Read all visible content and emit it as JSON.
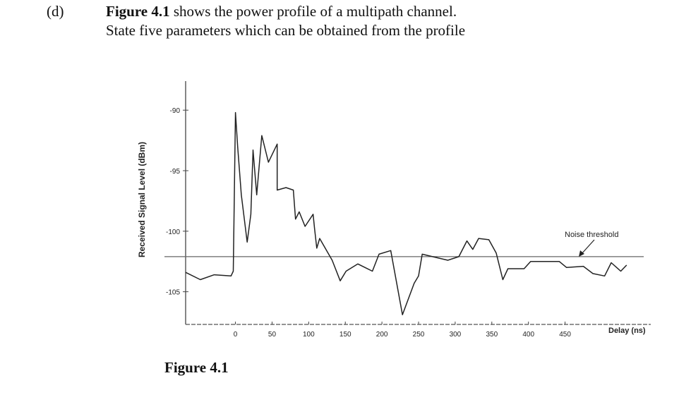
{
  "question": {
    "label": "(d)",
    "figure_ref": "Figure 4.1",
    "line1_rest": " shows the power profile of a multipath channel.",
    "line2": "State five parameters which can be obtained from the profile"
  },
  "caption": "Figure 4.1",
  "chart_data": {
    "type": "line",
    "title": "",
    "xlabel": "Delay (ns)",
    "ylabel": "Received Signal Level (dBm)",
    "xlim": [
      -68,
      567
    ],
    "ylim": [
      -107.7,
      -87.6
    ],
    "x_ticks": [
      0,
      50,
      100,
      150,
      200,
      250,
      300,
      350,
      400,
      450
    ],
    "x_tick_labels": [
      "0",
      "50",
      "100",
      "150",
      "200",
      "250",
      "300",
      "350",
      "400",
      "450"
    ],
    "y_ticks": [
      -90,
      -95,
      -100,
      -105
    ],
    "y_tick_labels": [
      "-90",
      "-95",
      "-100",
      "-105"
    ],
    "grid": false,
    "annotation": {
      "text": "Noise threshold",
      "points_to": "noise threshold line"
    },
    "noise_threshold": -102.1,
    "series": [
      {
        "x": [
          -68,
          -48,
          -29,
          -6,
          -3,
          0,
          3,
          8,
          16,
          21,
          24,
          29,
          36,
          45,
          57,
          57,
          69,
          79,
          82,
          87,
          95,
          106,
          108,
          111,
          115,
          132,
          143,
          151,
          167,
          187,
          196,
          212,
          228,
          244,
          250,
          255,
          269,
          290,
          305,
          316,
          324,
          332,
          346,
          356,
          365,
          372,
          394,
          403,
          423,
          442,
          452,
          475,
          488,
          504,
          513,
          526,
          534
        ],
        "y": [
          -103.4,
          -104,
          -103.6,
          -103.7,
          -103.3,
          -90.2,
          -93,
          -97,
          -100.9,
          -98.6,
          -93.3,
          -97,
          -92.1,
          -94.3,
          -92.8,
          -96.6,
          -96.4,
          -96.6,
          -99,
          -98.4,
          -99.6,
          -98.6,
          -99.8,
          -101.4,
          -100.6,
          -102.4,
          -104.1,
          -103.3,
          -102.7,
          -103.3,
          -101.9,
          -101.6,
          -106.9,
          -104.3,
          -103.7,
          -101.9,
          -102.1,
          -102.4,
          -102.1,
          -100.8,
          -101.5,
          -100.6,
          -100.7,
          -101.8,
          -104,
          -103.1,
          -103.1,
          -102.5,
          -102.5,
          -102.5,
          -103,
          -102.9,
          -103.5,
          -103.7,
          -102.6,
          -103.3,
          -102.8
        ]
      }
    ]
  }
}
